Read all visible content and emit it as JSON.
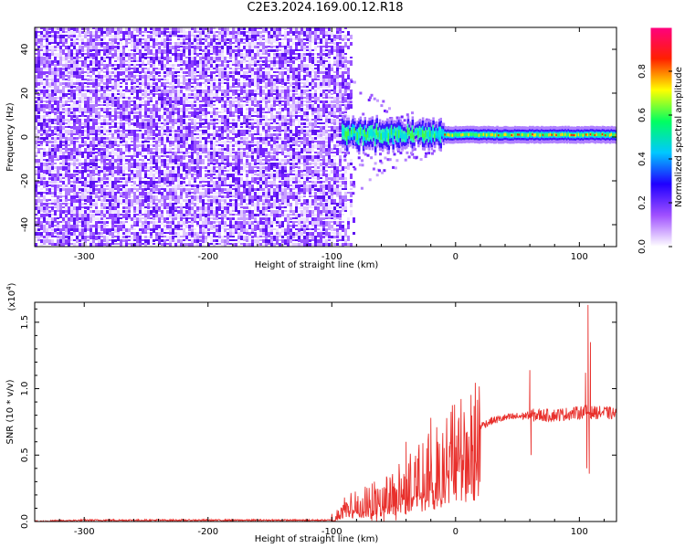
{
  "title": "C2E3.2024.169.00.12.R18",
  "chart_data": [
    {
      "type": "heatmap",
      "xlabel": "Height of straight line (km)",
      "ylabel": "Frequency (Hz)",
      "xlim": [
        -340,
        130
      ],
      "ylim": [
        -50,
        50
      ],
      "xticks": [
        -300,
        -200,
        -100,
        0,
        100
      ],
      "yticks": [
        -40,
        -20,
        0,
        20,
        40
      ],
      "xtick_labels": [
        "-300",
        "-200",
        "-100",
        "0",
        "100"
      ],
      "ytick_labels": [
        "-40",
        "-20",
        "0",
        "20",
        "40"
      ],
      "noise_region_x": [
        -340,
        -82
      ],
      "signal_band": {
        "x": [
          -92,
          130
        ],
        "center_hz": 1,
        "halfwidth_hz": 3
      },
      "colorbar": {
        "label": "Normalized spectral amplitude",
        "range": [
          0,
          1
        ],
        "ticks": [
          0.0,
          0.2,
          0.4,
          0.6,
          0.8
        ],
        "tick_labels": [
          "0.0",
          "0.2",
          "0.4",
          "0.6",
          "0.8"
        ],
        "colormap": [
          "#ffffff",
          "#a050ff",
          "#2000ff",
          "#00c8ff",
          "#00ff60",
          "#ffff00",
          "#ff2000",
          "#ff0080"
        ]
      }
    },
    {
      "type": "line",
      "xlabel": "Height of straight line (km)",
      "ylabel": "SNR (10 * v/v)",
      "y_multiplier": "(x10",
      "y_multiplier_exp": "4",
      "y_multiplier_close": ")",
      "xlim": [
        -340,
        130
      ],
      "ylim": [
        0,
        1.65
      ],
      "xticks": [
        -300,
        -200,
        -100,
        0,
        100
      ],
      "yticks": [
        0.0,
        0.5,
        1.0,
        1.5
      ],
      "xtick_labels": [
        "-300",
        "-200",
        "-100",
        "0",
        "100"
      ],
      "ytick_labels": [
        "0.0",
        "0.5",
        "1.0",
        "1.5"
      ],
      "color": "#e8302c",
      "series": [
        {
          "x": [
            -340,
            -300,
            -250,
            -200,
            -150,
            -110,
            -100,
            -95,
            -90,
            -80,
            -70,
            -60,
            -50,
            -40,
            -30,
            -20,
            -10,
            0,
            10,
            20,
            30,
            40,
            50,
            60,
            70,
            80,
            90,
            100,
            105,
            110,
            120,
            130
          ],
          "values": [
            0.0,
            0.01,
            0.01,
            0.01,
            0.01,
            0.01,
            0.01,
            0.05,
            0.12,
            0.12,
            0.14,
            0.17,
            0.21,
            0.26,
            0.32,
            0.4,
            0.48,
            0.57,
            0.65,
            0.72,
            0.76,
            0.78,
            0.79,
            0.8,
            0.8,
            0.8,
            0.81,
            0.82,
            0.83,
            0.82,
            0.82,
            0.81
          ],
          "spikes": [
            {
              "x": 60,
              "value": 1.14
            },
            {
              "x": 61,
              "value": 0.5
            },
            {
              "x": 105,
              "value": 1.12
            },
            {
              "x": 106,
              "value": 0.4
            },
            {
              "x": 107,
              "value": 1.63
            },
            {
              "x": 108,
              "value": 0.36
            },
            {
              "x": 109,
              "value": 1.35
            },
            {
              "x": 15,
              "value": 0.87
            },
            {
              "x": 14,
              "value": 0.35
            },
            {
              "x": -40,
              "value": 0.6
            },
            {
              "x": -20,
              "value": 0.78
            }
          ]
        }
      ]
    }
  ]
}
